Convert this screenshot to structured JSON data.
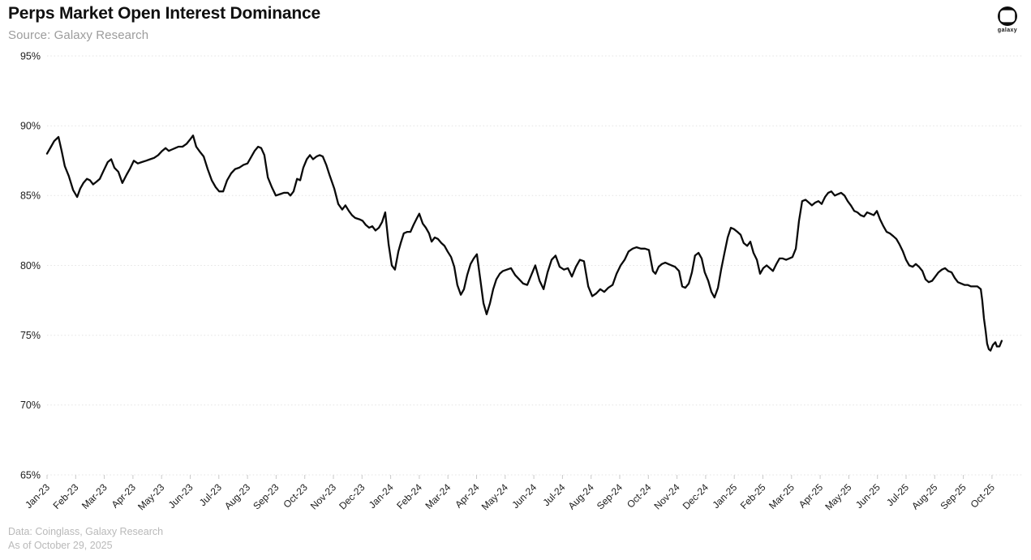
{
  "header": {
    "title": "Perps Market Open Interest Dominance",
    "subtitle": "Source: Galaxy Research",
    "logo_label": "galaxy"
  },
  "footer": {
    "line1": "Data: Coinglass, Galaxy Research",
    "line2": "As of October 29, 2025"
  },
  "chart_data": {
    "type": "line",
    "title": "Perps Market Open Interest Dominance",
    "series_name": "Perps market open interest dominance",
    "unit": "%",
    "x_unit": "months since Jan-2023 (t), labels mark month start",
    "ylim": [
      65,
      95
    ],
    "grid": "horizontal dotted lines",
    "line_color": "#0a0a0a",
    "axis_label_color": "#1c1c1c",
    "grid_color": "#e3e3e3",
    "y_tick_values": [
      95,
      90,
      85,
      80,
      75,
      70,
      65
    ],
    "y_tick_labels": [
      "95%",
      "90%",
      "85%",
      "80%",
      "75%",
      "70%",
      "65%"
    ],
    "x_tick_labels": [
      "Jan-23",
      "Feb-23",
      "Mar-23",
      "Apr-23",
      "May-23",
      "Jun-23",
      "Jul-23",
      "Aug-23",
      "Sep-23",
      "Oct-23",
      "Nov-23",
      "Dec-23",
      "Jan-24",
      "Feb-24",
      "Mar-24",
      "Apr-24",
      "May-24",
      "Jun-24",
      "Jul-24",
      "Aug-24",
      "Sep-24",
      "Oct-24",
      "Nov-24",
      "Dec-24",
      "Jan-25",
      "Feb-25",
      "Mar-25",
      "Apr-25",
      "May-25",
      "Jun-25",
      "Jul-25",
      "Aug-25",
      "Sep-25",
      "Oct-25"
    ],
    "points": [
      [
        0.0,
        88.0
      ],
      [
        0.14,
        88.5
      ],
      [
        0.25,
        88.9
      ],
      [
        0.4,
        89.2
      ],
      [
        0.51,
        88.2
      ],
      [
        0.62,
        87.1
      ],
      [
        0.76,
        86.4
      ],
      [
        0.91,
        85.4
      ],
      [
        1.05,
        84.9
      ],
      [
        1.16,
        85.5
      ],
      [
        1.27,
        85.9
      ],
      [
        1.39,
        86.2
      ],
      [
        1.5,
        86.1
      ],
      [
        1.61,
        85.8
      ],
      [
        1.73,
        86.0
      ],
      [
        1.84,
        86.2
      ],
      [
        1.98,
        86.8
      ],
      [
        2.12,
        87.4
      ],
      [
        2.24,
        87.6
      ],
      [
        2.35,
        87.0
      ],
      [
        2.49,
        86.7
      ],
      [
        2.63,
        85.9
      ],
      [
        2.78,
        86.5
      ],
      [
        2.89,
        86.9
      ],
      [
        3.03,
        87.5
      ],
      [
        3.17,
        87.3
      ],
      [
        3.31,
        87.4
      ],
      [
        3.46,
        87.5
      ],
      [
        3.6,
        87.6
      ],
      [
        3.74,
        87.7
      ],
      [
        3.88,
        87.9
      ],
      [
        4.02,
        88.2
      ],
      [
        4.14,
        88.4
      ],
      [
        4.25,
        88.2
      ],
      [
        4.36,
        88.3
      ],
      [
        4.48,
        88.4
      ],
      [
        4.59,
        88.5
      ],
      [
        4.73,
        88.5
      ],
      [
        4.87,
        88.7
      ],
      [
        4.99,
        89.0
      ],
      [
        5.1,
        89.3
      ],
      [
        5.21,
        88.5
      ],
      [
        5.35,
        88.1
      ],
      [
        5.47,
        87.8
      ],
      [
        5.61,
        86.9
      ],
      [
        5.75,
        86.1
      ],
      [
        5.89,
        85.6
      ],
      [
        6.01,
        85.3
      ],
      [
        6.15,
        85.3
      ],
      [
        6.29,
        86.1
      ],
      [
        6.43,
        86.6
      ],
      [
        6.57,
        86.9
      ],
      [
        6.71,
        87.0
      ],
      [
        6.86,
        87.2
      ],
      [
        7.0,
        87.3
      ],
      [
        7.14,
        87.8
      ],
      [
        7.25,
        88.2
      ],
      [
        7.37,
        88.5
      ],
      [
        7.48,
        88.4
      ],
      [
        7.59,
        87.9
      ],
      [
        7.71,
        86.3
      ],
      [
        7.85,
        85.6
      ],
      [
        7.99,
        85.0
      ],
      [
        8.13,
        85.1
      ],
      [
        8.27,
        85.2
      ],
      [
        8.41,
        85.2
      ],
      [
        8.5,
        85.0
      ],
      [
        8.61,
        85.3
      ],
      [
        8.73,
        86.2
      ],
      [
        8.84,
        86.1
      ],
      [
        8.95,
        87.0
      ],
      [
        9.07,
        87.6
      ],
      [
        9.18,
        87.9
      ],
      [
        9.29,
        87.6
      ],
      [
        9.41,
        87.8
      ],
      [
        9.52,
        87.9
      ],
      [
        9.63,
        87.8
      ],
      [
        9.75,
        87.2
      ],
      [
        9.86,
        86.5
      ],
      [
        10.03,
        85.5
      ],
      [
        10.17,
        84.4
      ],
      [
        10.31,
        84.0
      ],
      [
        10.42,
        84.3
      ],
      [
        10.54,
        83.9
      ],
      [
        10.65,
        83.6
      ],
      [
        10.76,
        83.4
      ],
      [
        10.91,
        83.3
      ],
      [
        11.02,
        83.2
      ],
      [
        11.13,
        82.9
      ],
      [
        11.25,
        82.7
      ],
      [
        11.36,
        82.8
      ],
      [
        11.47,
        82.5
      ],
      [
        11.59,
        82.7
      ],
      [
        11.7,
        83.1
      ],
      [
        11.81,
        83.8
      ],
      [
        11.93,
        81.5
      ],
      [
        12.04,
        80.0
      ],
      [
        12.15,
        79.7
      ],
      [
        12.27,
        81.0
      ],
      [
        12.35,
        81.6
      ],
      [
        12.46,
        82.3
      ],
      [
        12.58,
        82.4
      ],
      [
        12.69,
        82.4
      ],
      [
        12.8,
        82.9
      ],
      [
        12.92,
        83.4
      ],
      [
        13.0,
        83.7
      ],
      [
        13.12,
        83.0
      ],
      [
        13.23,
        82.7
      ],
      [
        13.34,
        82.3
      ],
      [
        13.43,
        81.7
      ],
      [
        13.54,
        82.0
      ],
      [
        13.65,
        81.9
      ],
      [
        13.77,
        81.6
      ],
      [
        13.88,
        81.4
      ],
      [
        13.99,
        81.0
      ],
      [
        14.11,
        80.6
      ],
      [
        14.22,
        79.9
      ],
      [
        14.33,
        78.6
      ],
      [
        14.45,
        77.9
      ],
      [
        14.56,
        78.3
      ],
      [
        14.67,
        79.3
      ],
      [
        14.79,
        80.1
      ],
      [
        14.9,
        80.5
      ],
      [
        15.01,
        80.8
      ],
      [
        15.13,
        79.0
      ],
      [
        15.24,
        77.3
      ],
      [
        15.35,
        76.5
      ],
      [
        15.47,
        77.3
      ],
      [
        15.58,
        78.3
      ],
      [
        15.69,
        79.0
      ],
      [
        15.81,
        79.4
      ],
      [
        15.92,
        79.6
      ],
      [
        16.06,
        79.7
      ],
      [
        16.2,
        79.8
      ],
      [
        16.35,
        79.3
      ],
      [
        16.49,
        79.0
      ],
      [
        16.63,
        78.7
      ],
      [
        16.77,
        78.6
      ],
      [
        16.91,
        79.3
      ],
      [
        17.05,
        80.0
      ],
      [
        17.2,
        78.9
      ],
      [
        17.34,
        78.3
      ],
      [
        17.48,
        79.5
      ],
      [
        17.62,
        80.4
      ],
      [
        17.76,
        80.7
      ],
      [
        17.9,
        79.9
      ],
      [
        18.05,
        79.7
      ],
      [
        18.19,
        79.8
      ],
      [
        18.33,
        79.2
      ],
      [
        18.47,
        79.9
      ],
      [
        18.61,
        80.4
      ],
      [
        18.75,
        80.3
      ],
      [
        18.9,
        78.5
      ],
      [
        19.04,
        77.8
      ],
      [
        19.18,
        78.0
      ],
      [
        19.32,
        78.3
      ],
      [
        19.46,
        78.1
      ],
      [
        19.6,
        78.4
      ],
      [
        19.75,
        78.6
      ],
      [
        19.89,
        79.4
      ],
      [
        20.03,
        80.0
      ],
      [
        20.17,
        80.4
      ],
      [
        20.31,
        81.0
      ],
      [
        20.45,
        81.2
      ],
      [
        20.59,
        81.3
      ],
      [
        20.74,
        81.2
      ],
      [
        20.88,
        81.2
      ],
      [
        21.02,
        81.1
      ],
      [
        21.16,
        79.6
      ],
      [
        21.25,
        79.4
      ],
      [
        21.36,
        79.9
      ],
      [
        21.47,
        80.1
      ],
      [
        21.59,
        80.2
      ],
      [
        21.7,
        80.1
      ],
      [
        21.81,
        80.0
      ],
      [
        21.93,
        79.9
      ],
      [
        22.07,
        79.6
      ],
      [
        22.18,
        78.5
      ],
      [
        22.29,
        78.4
      ],
      [
        22.41,
        78.7
      ],
      [
        22.52,
        79.5
      ],
      [
        22.63,
        80.7
      ],
      [
        22.75,
        80.9
      ],
      [
        22.86,
        80.5
      ],
      [
        22.97,
        79.5
      ],
      [
        23.09,
        78.9
      ],
      [
        23.2,
        78.1
      ],
      [
        23.31,
        77.7
      ],
      [
        23.43,
        78.4
      ],
      [
        23.54,
        79.7
      ],
      [
        23.65,
        80.8
      ],
      [
        23.77,
        82.0
      ],
      [
        23.88,
        82.7
      ],
      [
        23.99,
        82.6
      ],
      [
        24.11,
        82.4
      ],
      [
        24.22,
        82.2
      ],
      [
        24.33,
        81.6
      ],
      [
        24.45,
        81.4
      ],
      [
        24.56,
        81.7
      ],
      [
        24.67,
        80.9
      ],
      [
        24.79,
        80.4
      ],
      [
        24.9,
        79.4
      ],
      [
        25.01,
        79.8
      ],
      [
        25.13,
        80.0
      ],
      [
        25.24,
        79.8
      ],
      [
        25.35,
        79.6
      ],
      [
        25.47,
        80.1
      ],
      [
        25.58,
        80.5
      ],
      [
        25.69,
        80.5
      ],
      [
        25.81,
        80.4
      ],
      [
        25.92,
        80.5
      ],
      [
        26.03,
        80.6
      ],
      [
        26.15,
        81.2
      ],
      [
        26.26,
        83.2
      ],
      [
        26.37,
        84.6
      ],
      [
        26.49,
        84.7
      ],
      [
        26.6,
        84.5
      ],
      [
        26.71,
        84.3
      ],
      [
        26.83,
        84.5
      ],
      [
        26.94,
        84.6
      ],
      [
        27.05,
        84.4
      ],
      [
        27.17,
        84.9
      ],
      [
        27.28,
        85.2
      ],
      [
        27.39,
        85.3
      ],
      [
        27.51,
        85.0
      ],
      [
        27.62,
        85.1
      ],
      [
        27.73,
        85.2
      ],
      [
        27.85,
        85.0
      ],
      [
        27.96,
        84.6
      ],
      [
        28.07,
        84.3
      ],
      [
        28.19,
        83.9
      ],
      [
        28.3,
        83.8
      ],
      [
        28.41,
        83.6
      ],
      [
        28.53,
        83.5
      ],
      [
        28.64,
        83.8
      ],
      [
        28.75,
        83.7
      ],
      [
        28.87,
        83.6
      ],
      [
        28.98,
        83.9
      ],
      [
        29.09,
        83.3
      ],
      [
        29.21,
        82.8
      ],
      [
        29.32,
        82.4
      ],
      [
        29.43,
        82.3
      ],
      [
        29.55,
        82.1
      ],
      [
        29.66,
        81.9
      ],
      [
        29.77,
        81.5
      ],
      [
        29.89,
        81.0
      ],
      [
        30.0,
        80.4
      ],
      [
        30.11,
        80.0
      ],
      [
        30.23,
        79.9
      ],
      [
        30.34,
        80.1
      ],
      [
        30.45,
        79.9
      ],
      [
        30.57,
        79.6
      ],
      [
        30.68,
        79.0
      ],
      [
        30.79,
        78.8
      ],
      [
        30.91,
        78.9
      ],
      [
        31.02,
        79.2
      ],
      [
        31.13,
        79.5
      ],
      [
        31.25,
        79.7
      ],
      [
        31.36,
        79.8
      ],
      [
        31.47,
        79.6
      ],
      [
        31.59,
        79.5
      ],
      [
        31.7,
        79.1
      ],
      [
        31.81,
        78.8
      ],
      [
        31.93,
        78.7
      ],
      [
        32.04,
        78.6
      ],
      [
        32.15,
        78.6
      ],
      [
        32.27,
        78.5
      ],
      [
        32.38,
        78.5
      ],
      [
        32.49,
        78.5
      ],
      [
        32.61,
        78.3
      ],
      [
        32.66,
        77.5
      ],
      [
        32.72,
        76.2
      ],
      [
        32.78,
        75.3
      ],
      [
        32.83,
        74.4
      ],
      [
        32.89,
        74.0
      ],
      [
        32.95,
        73.9
      ],
      [
        33.03,
        74.3
      ],
      [
        33.12,
        74.5
      ],
      [
        33.17,
        74.2
      ],
      [
        33.26,
        74.2
      ],
      [
        33.34,
        74.6
      ]
    ]
  }
}
